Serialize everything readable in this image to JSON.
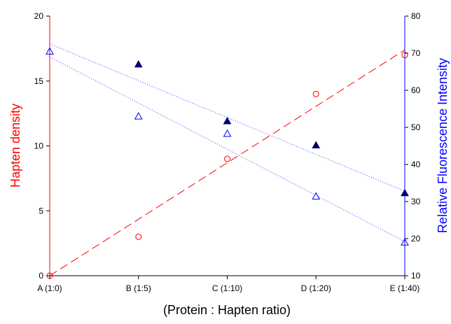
{
  "chart_data": {
    "type": "scatter",
    "xlabel": "(Protein : Hapten ratio)",
    "categories": [
      "A (1:0)",
      "B (1:5)",
      "C (1:10)",
      "D (1:20)",
      "E (1:40)"
    ],
    "y_left": {
      "label": "Hapten density",
      "color": "#ff0000",
      "ylim": [
        0,
        20
      ],
      "ticks": [
        0,
        5,
        10,
        15,
        20
      ]
    },
    "y_right": {
      "label": "Relative Fluorescence Intensity",
      "color": "#0000ff",
      "ylim": [
        10,
        80
      ],
      "ticks": [
        10,
        20,
        30,
        40,
        50,
        60,
        70,
        80
      ]
    },
    "series": [
      {
        "axis": "left",
        "marker": "open-circle",
        "color": "#ff0000",
        "values": [
          0,
          3,
          9,
          14,
          17
        ],
        "trendline": {
          "style": "dashed",
          "start": 0,
          "end": 17.4
        }
      },
      {
        "axis": "right",
        "marker": "open-triangle",
        "color": "#0000ff",
        "values": [
          70.5,
          53,
          48.3,
          31.4,
          19
        ],
        "trendline": {
          "style": "dotted",
          "start": 69,
          "end": 19.2
        }
      },
      {
        "axis": "right",
        "marker": "filled-triangle",
        "color": "#00006e",
        "values": [
          null,
          67,
          51.7,
          45.2,
          32.3
        ],
        "trendline": {
          "style": "dotted",
          "start": 72.5,
          "end": 32.8
        }
      }
    ],
    "grid": false,
    "legend": "none"
  }
}
